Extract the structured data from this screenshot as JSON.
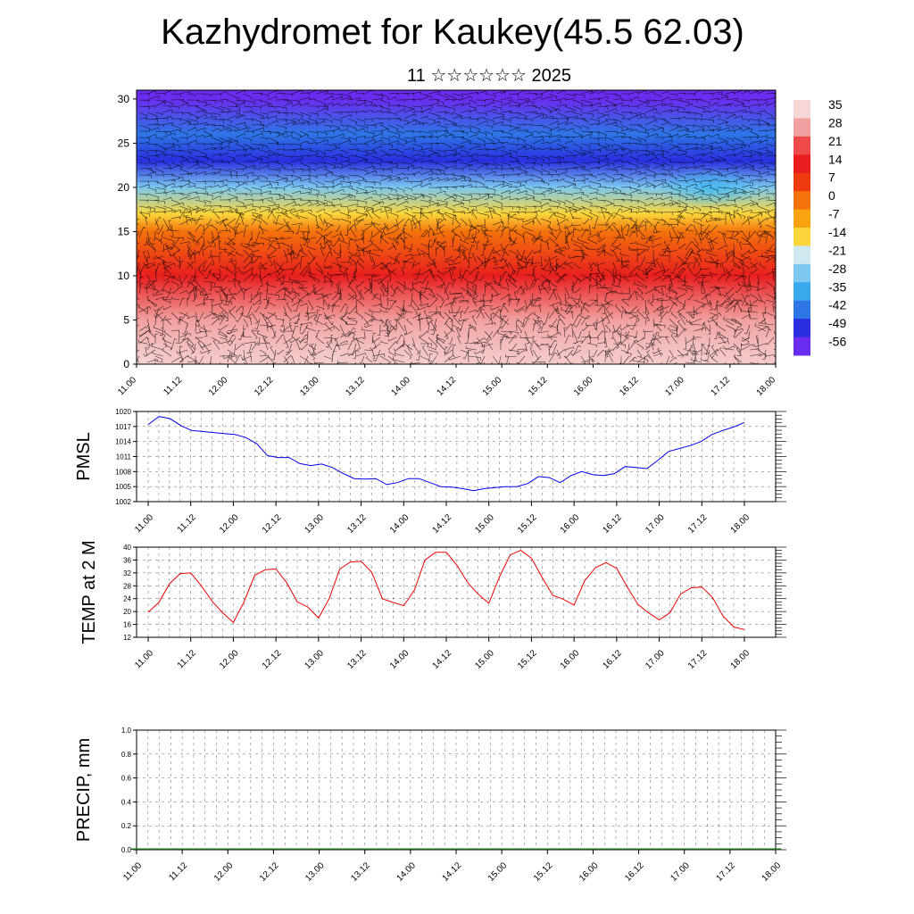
{
  "header": {
    "title": "Kazhydromet for Kaukey(45.5 62.03)",
    "subtitle": "11 ☆☆☆☆☆☆ 2025"
  },
  "chart_data": [
    {
      "type": "heatmap",
      "title": "",
      "xlabel": "",
      "ylabel": "",
      "x_tick_labels": [
        "11.00",
        "11.12",
        "12.00",
        "12.12",
        "13.00",
        "13.12",
        "14.00",
        "14.12",
        "15.00",
        "15.12",
        "16.00",
        "16.12",
        "17.00",
        "17.12",
        "18.00"
      ],
      "y_ticks": [
        0,
        5,
        10,
        15,
        20,
        25,
        30
      ],
      "ylim": [
        0,
        31
      ],
      "colorbar": {
        "labels": [
          "35",
          "28",
          "21",
          "14",
          "7",
          "0",
          "-7",
          "-14",
          "-21",
          "-28",
          "-35",
          "-42",
          "-49",
          "-56"
        ],
        "values": [
          35,
          28,
          21,
          14,
          7,
          0,
          -7,
          -14,
          -21,
          -28,
          -35,
          -42,
          -49,
          -56
        ],
        "colors": [
          "#f6d6d6",
          "#f2a0a0",
          "#ee4a4a",
          "#e81e1e",
          "#ee3a10",
          "#f4720c",
          "#f9a310",
          "#fbd63a",
          "#d0e8f0",
          "#7cc8f0",
          "#38aaec",
          "#2e76e6",
          "#2a2ee0",
          "#6a2cee"
        ]
      },
      "vertical_profile": [
        {
          "level": 0,
          "temperature": 28
        },
        {
          "level": 5,
          "temperature": 24
        },
        {
          "level": 10,
          "temperature": 12
        },
        {
          "level": 15,
          "temperature": -6
        },
        {
          "level": 17,
          "temperature": -18
        },
        {
          "level": 20,
          "temperature": -35
        },
        {
          "level": 23,
          "temperature": -52
        },
        {
          "level": 26,
          "temperature": -48
        },
        {
          "level": 30,
          "temperature": -58
        }
      ]
    },
    {
      "type": "line",
      "ylabel": "PMSL",
      "ylim": [
        1002,
        1020
      ],
      "y_ticks": [
        1002,
        1005,
        1008,
        1011,
        1014,
        1017,
        1020
      ],
      "x_tick_labels": [
        "11.00",
        "11.12",
        "12.00",
        "12.12",
        "13.00",
        "13.12",
        "14.00",
        "14.12",
        "15.00",
        "15.12",
        "16.00",
        "16.12",
        "17.00",
        "17.12",
        "18.00"
      ],
      "series": [
        {
          "color": "#0000ee",
          "values": [
            1017.4,
            1019.0,
            1018.6,
            1017.2,
            1016.2,
            1016.0,
            1015.8,
            1015.6,
            1015.4,
            1014.8,
            1013.6,
            1011.2,
            1010.8,
            1010.8,
            1009.6,
            1009.2,
            1009.5,
            1008.8,
            1007.6,
            1006.6,
            1006.5,
            1006.6,
            1005.4,
            1005.8,
            1006.6,
            1006.6,
            1005.8,
            1005.0,
            1004.9,
            1004.6,
            1004.2,
            1004.6,
            1004.8,
            1005.0,
            1005.0,
            1005.6,
            1007.0,
            1006.8,
            1005.8,
            1007.2,
            1008.0,
            1007.4,
            1007.2,
            1007.6,
            1009.0,
            1008.8,
            1008.6,
            1010.2,
            1012.0,
            1012.6,
            1013.2,
            1014.0,
            1015.4,
            1016.2,
            1016.9,
            1017.8
          ]
        }
      ]
    },
    {
      "type": "line",
      "ylabel": "TEMP at 2 M",
      "ylim": [
        12,
        40
      ],
      "y_ticks": [
        12,
        16,
        20,
        24,
        28,
        32,
        36,
        40
      ],
      "x_tick_labels": [
        "11.00",
        "11.12",
        "12.00",
        "12.12",
        "13.00",
        "13.12",
        "14.00",
        "14.12",
        "15.00",
        "15.12",
        "16.00",
        "16.12",
        "17.00",
        "17.12",
        "18.00"
      ],
      "series": [
        {
          "color": "#ee0000",
          "values": [
            19.8,
            22.8,
            28.6,
            31.8,
            32.0,
            28.0,
            23.2,
            19.6,
            16.6,
            23.0,
            31.2,
            33.0,
            33.2,
            29.0,
            23.0,
            21.4,
            18.0,
            24.0,
            33.2,
            35.4,
            35.6,
            32.2,
            24.0,
            22.8,
            21.8,
            26.6,
            36.0,
            38.4,
            38.4,
            34.4,
            29.0,
            25.4,
            22.6,
            30.8,
            37.6,
            39.0,
            36.6,
            30.6,
            25.0,
            23.8,
            22.0,
            29.6,
            33.6,
            35.2,
            33.4,
            27.6,
            22.2,
            19.6,
            17.4,
            19.6,
            25.4,
            27.4,
            27.6,
            24.4,
            18.6,
            15.2,
            14.4
          ]
        }
      ]
    },
    {
      "type": "bar",
      "ylabel": "PRECIP, mm",
      "ylim": [
        0,
        1.0
      ],
      "y_ticks": [
        "0.0",
        "0.2",
        "0.4",
        "0.6",
        "0.8",
        "1.0"
      ],
      "x_tick_labels": [
        "11.00",
        "11.12",
        "12.00",
        "12.12",
        "13.00",
        "13.12",
        "14.00",
        "14.12",
        "15.00",
        "15.12",
        "16.00",
        "16.12",
        "17.00",
        "17.12",
        "18.00"
      ],
      "bar_color": "#1a6a1a",
      "values": [
        0,
        0,
        0,
        0,
        0,
        0,
        0,
        0,
        0,
        0,
        0,
        0,
        0,
        0,
        0,
        0,
        0,
        0,
        0,
        0,
        0,
        0,
        0,
        0,
        0,
        0,
        0,
        0,
        0,
        0,
        0,
        0,
        0,
        0,
        0,
        0,
        0,
        0,
        0,
        0,
        0,
        0,
        0,
        0,
        0,
        0,
        0,
        0,
        0,
        0,
        0,
        0,
        0,
        0,
        0,
        0,
        0
      ]
    }
  ]
}
